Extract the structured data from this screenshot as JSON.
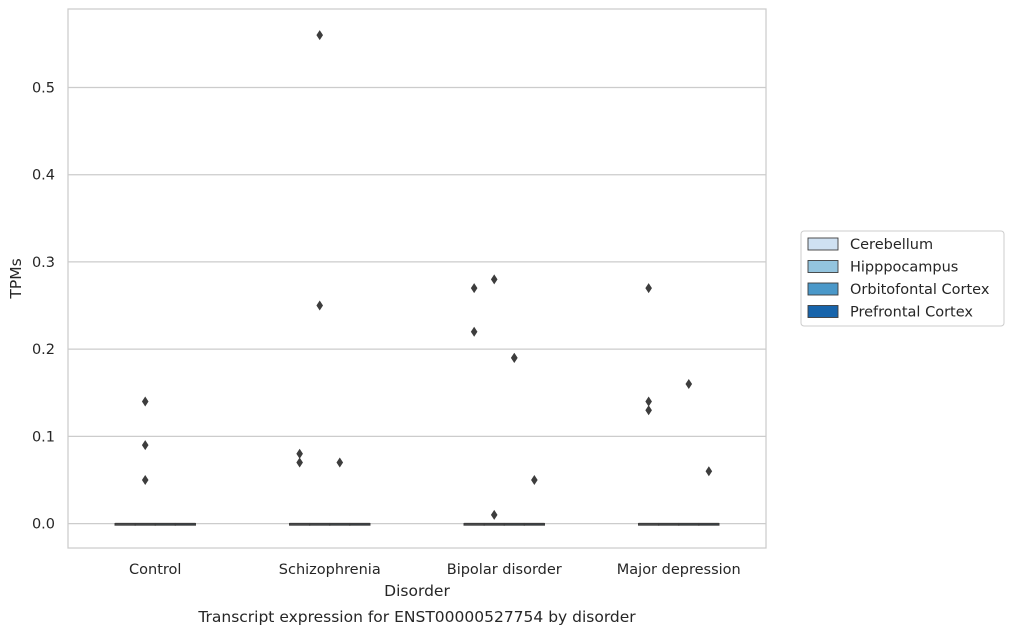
{
  "chart_data": {
    "type": "box",
    "caption": "Transcript expression for ENST00000527754 by disorder",
    "xlabel": "Disorder",
    "ylabel": "TPMs",
    "ylim": [
      -0.028,
      0.59
    ],
    "yticks": [
      "0.0",
      "0.1",
      "0.2",
      "0.3",
      "0.4",
      "0.5"
    ],
    "grid": "horizontal",
    "legend_position": "right",
    "categories": [
      "Control",
      "Schizophrenia",
      "Bipolar disorder",
      "Major depression"
    ],
    "series": [
      {
        "name": "Cerebellum",
        "color": "#cfe1f2"
      },
      {
        "name": "Hipppocampus",
        "color": "#93c4de"
      },
      {
        "name": "Orbitofontal Cortex",
        "color": "#4a98c9"
      },
      {
        "name": "Prefrontal Cortex",
        "color": "#1764ab"
      }
    ],
    "boxes": [
      {
        "category": "Control",
        "series": "Cerebellum",
        "median": 0,
        "q1": 0,
        "q3": 0,
        "whisker_low": 0,
        "whisker_high": 0,
        "outliers": []
      },
      {
        "category": "Control",
        "series": "Hipppocampus",
        "median": 0,
        "q1": 0,
        "q3": 0,
        "whisker_low": 0,
        "whisker_high": 0,
        "outliers": [
          0.14,
          0.09,
          0.05
        ]
      },
      {
        "category": "Control",
        "series": "Orbitofontal Cortex",
        "median": 0,
        "q1": 0,
        "q3": 0,
        "whisker_low": 0,
        "whisker_high": 0,
        "outliers": []
      },
      {
        "category": "Control",
        "series": "Prefrontal Cortex",
        "median": 0,
        "q1": 0,
        "q3": 0,
        "whisker_low": 0,
        "whisker_high": 0,
        "outliers": []
      },
      {
        "category": "Schizophrenia",
        "series": "Cerebellum",
        "median": 0,
        "q1": 0,
        "q3": 0,
        "whisker_low": 0,
        "whisker_high": 0,
        "outliers": [
          0.08,
          0.07
        ]
      },
      {
        "category": "Schizophrenia",
        "series": "Hipppocampus",
        "median": 0,
        "q1": 0,
        "q3": 0,
        "whisker_low": 0,
        "whisker_high": 0,
        "outliers": [
          0.56,
          0.25
        ]
      },
      {
        "category": "Schizophrenia",
        "series": "Orbitofontal Cortex",
        "median": 0,
        "q1": 0,
        "q3": 0,
        "whisker_low": 0,
        "whisker_high": 0,
        "outliers": [
          0.07
        ]
      },
      {
        "category": "Schizophrenia",
        "series": "Prefrontal Cortex",
        "median": 0,
        "q1": 0,
        "q3": 0,
        "whisker_low": 0,
        "whisker_high": 0,
        "outliers": []
      },
      {
        "category": "Bipolar disorder",
        "series": "Cerebellum",
        "median": 0,
        "q1": 0,
        "q3": 0,
        "whisker_low": 0,
        "whisker_high": 0,
        "outliers": [
          0.27,
          0.22
        ]
      },
      {
        "category": "Bipolar disorder",
        "series": "Hipppocampus",
        "median": 0,
        "q1": 0,
        "q3": 0,
        "whisker_low": 0,
        "whisker_high": 0,
        "outliers": [
          0.28,
          0.01
        ]
      },
      {
        "category": "Bipolar disorder",
        "series": "Orbitofontal Cortex",
        "median": 0,
        "q1": 0,
        "q3": 0,
        "whisker_low": 0,
        "whisker_high": 0,
        "outliers": [
          0.19,
          0.19
        ]
      },
      {
        "category": "Bipolar disorder",
        "series": "Prefrontal Cortex",
        "median": 0,
        "q1": 0,
        "q3": 0,
        "whisker_low": 0,
        "whisker_high": 0,
        "outliers": [
          0.05
        ]
      },
      {
        "category": "Major depression",
        "series": "Cerebellum",
        "median": 0,
        "q1": 0,
        "q3": 0,
        "whisker_low": 0,
        "whisker_high": 0,
        "outliers": [
          0.27,
          0.14,
          0.13
        ]
      },
      {
        "category": "Major depression",
        "series": "Hipppocampus",
        "median": 0,
        "q1": 0,
        "q3": 0,
        "whisker_low": 0,
        "whisker_high": 0,
        "outliers": []
      },
      {
        "category": "Major depression",
        "series": "Orbitofontal Cortex",
        "median": 0,
        "q1": 0,
        "q3": 0,
        "whisker_low": 0,
        "whisker_high": 0,
        "outliers": [
          0.16
        ]
      },
      {
        "category": "Major depression",
        "series": "Prefrontal Cortex",
        "median": 0,
        "q1": 0,
        "q3": 0,
        "whisker_low": 0,
        "whisker_high": 0,
        "outliers": [
          0.06
        ]
      }
    ]
  }
}
